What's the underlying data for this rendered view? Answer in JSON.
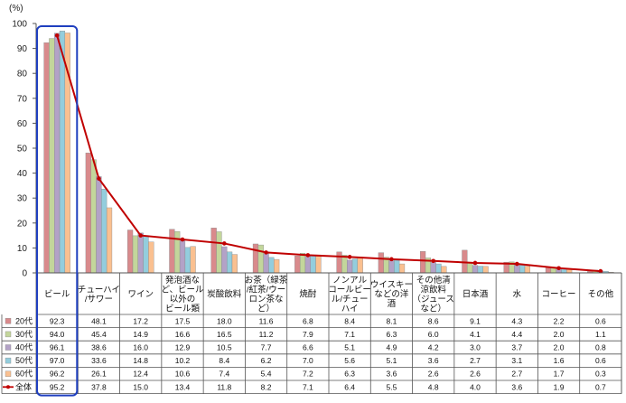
{
  "chart_data": {
    "type": "bar",
    "unit_label": "(%)",
    "ylim": [
      0,
      100
    ],
    "yticks": [
      0,
      10,
      20,
      30,
      40,
      50,
      60,
      70,
      80,
      90,
      100
    ],
    "categories": [
      "ビール",
      "チューハイ/サワー",
      "ワイン",
      "発泡酒など、ビール以外のビール類",
      "炭酸飲料",
      "お茶（緑茶/紅茶/ウーロン茶など）",
      "焼酎",
      "ノンアルコールビール/チューハイ",
      "ウイスキーなどの洋酒",
      "その他清涼飲料（ジュースなど）",
      "日本酒",
      "水",
      "コーヒー",
      "その他"
    ],
    "category_lines": [
      [
        "ビール"
      ],
      [
        "チューハイ",
        "/サワー"
      ],
      [
        "ワイン"
      ],
      [
        "発泡酒な",
        "ど、ビール",
        "以外の",
        "ビール類"
      ],
      [
        "炭酸飲料"
      ],
      [
        "お茶（緑茶",
        "/紅茶/ウー",
        "ロン茶な",
        "ど）"
      ],
      [
        "焼酎"
      ],
      [
        "ノンアル",
        "コールビー",
        "ル/チュー",
        "ハイ"
      ],
      [
        "ウイスキー",
        "などの洋",
        "酒"
      ],
      [
        "その他清",
        "涼飲料",
        "（ジュース",
        "など）"
      ],
      [
        "日本酒"
      ],
      [
        "水"
      ],
      [
        "コーヒー"
      ],
      [
        "その他"
      ]
    ],
    "series": [
      {
        "name": "20代",
        "color": "#d98a8c",
        "values": [
          92.3,
          48.1,
          17.2,
          17.5,
          18.0,
          11.6,
          6.8,
          8.4,
          8.1,
          8.6,
          9.1,
          4.3,
          2.2,
          0.6
        ]
      },
      {
        "name": "30代",
        "color": "#c3d69b",
        "values": [
          94.0,
          45.4,
          14.9,
          16.6,
          16.5,
          11.2,
          7.9,
          7.1,
          6.3,
          6.0,
          4.1,
          4.4,
          2.0,
          1.1
        ]
      },
      {
        "name": "40代",
        "color": "#b3a2c7",
        "values": [
          96.1,
          38.6,
          16.0,
          12.9,
          10.5,
          7.7,
          6.6,
          5.1,
          4.9,
          4.2,
          3.0,
          3.7,
          2.0,
          0.8
        ]
      },
      {
        "name": "50代",
        "color": "#93cddd",
        "values": [
          97.0,
          33.6,
          14.8,
          10.2,
          8.4,
          6.2,
          7.0,
          5.6,
          5.1,
          3.6,
          2.7,
          3.1,
          1.6,
          0.6
        ]
      },
      {
        "name": "60代",
        "color": "#fac090",
        "values": [
          96.2,
          26.1,
          12.4,
          10.6,
          7.4,
          5.4,
          7.2,
          6.3,
          3.6,
          2.6,
          2.6,
          2.7,
          1.7,
          0.3
        ]
      }
    ],
    "line_series": {
      "name": "全体",
      "color": "#c00000",
      "values": [
        95.2,
        37.8,
        15.0,
        13.4,
        11.8,
        8.2,
        7.1,
        6.4,
        5.5,
        4.8,
        4.0,
        3.6,
        1.9,
        0.7
      ]
    },
    "table_rows": [
      {
        "name": "20代",
        "values": [
          "92.3",
          "48.1",
          "17.2",
          "17.5",
          "18.0",
          "11.6",
          "6.8",
          "8.4",
          "8.1",
          "8.6",
          "9.1",
          "4.3",
          "2.2",
          "0.6"
        ]
      },
      {
        "name": "30代",
        "values": [
          "94.0",
          "45.4",
          "14.9",
          "16.6",
          "16.5",
          "11.2",
          "7.9",
          "7.1",
          "6.3",
          "6.0",
          "4.1",
          "4.4",
          "2.0",
          "1.1"
        ]
      },
      {
        "name": "40代",
        "values": [
          "96.1",
          "38.6",
          "16.0",
          "12.9",
          "10.5",
          "7.7",
          "6.6",
          "5.1",
          "4.9",
          "4.2",
          "3.0",
          "3.7",
          "2.0",
          "0.8"
        ]
      },
      {
        "name": "50代",
        "values": [
          "97.0",
          "33.6",
          "14.8",
          "10.2",
          "8.4",
          "6.2",
          "7.0",
          "5.6",
          "5.1",
          "3.6",
          "2.7",
          "3.1",
          "1.6",
          "0.6"
        ]
      },
      {
        "name": "60代",
        "values": [
          "96.2",
          "26.1",
          "12.4",
          "10.6",
          "7.4",
          "5.4",
          "7.2",
          "6.3",
          "3.6",
          "2.6",
          "2.6",
          "2.7",
          "1.7",
          "0.3"
        ]
      },
      {
        "name": "全体",
        "values": [
          "95.2",
          "37.8",
          "15.0",
          "13.4",
          "11.8",
          "8.2",
          "7.1",
          "6.4",
          "5.5",
          "4.8",
          "4.0",
          "3.6",
          "1.9",
          "0.7"
        ]
      }
    ],
    "highlight_category": "ビール",
    "highlight_color": "#1f3fbf",
    "grid": false,
    "legend_placement": "left of data table"
  }
}
